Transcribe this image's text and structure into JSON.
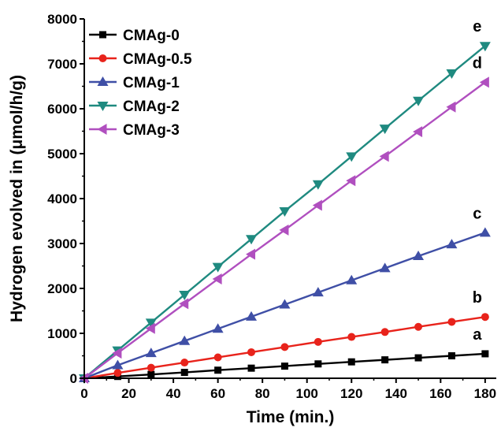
{
  "chart_data": {
    "type": "line",
    "xlabel": "Time (min.)",
    "ylabel": "Hydrogen evolved in (μmol/h/g)",
    "xlim": [
      0,
      185
    ],
    "ylim": [
      0,
      8000
    ],
    "xticks": [
      0,
      20,
      40,
      60,
      80,
      100,
      120,
      140,
      160,
      180
    ],
    "yticks": [
      0,
      1000,
      2000,
      3000,
      4000,
      5000,
      6000,
      7000,
      8000
    ],
    "grid": false,
    "legend_position": "top-left",
    "x": [
      0,
      15,
      30,
      45,
      60,
      75,
      90,
      105,
      120,
      135,
      150,
      165,
      180
    ],
    "series": [
      {
        "name": "CMAg-0",
        "color": "#000000",
        "marker": "square",
        "end_label": "a",
        "values": [
          0,
          40,
          85,
          130,
          180,
          225,
          270,
          320,
          365,
          410,
          455,
          500,
          545
        ]
      },
      {
        "name": "CMAg-0.5",
        "color": "#e8231b",
        "marker": "circle",
        "end_label": "b",
        "values": [
          0,
          120,
          235,
          350,
          465,
          580,
          695,
          810,
          920,
          1030,
          1145,
          1255,
          1365
        ]
      },
      {
        "name": "CMAg-1",
        "color": "#3f4fa6",
        "marker": "triangle-up",
        "end_label": "c",
        "values": [
          0,
          290,
          560,
          830,
          1100,
          1370,
          1640,
          1910,
          2180,
          2450,
          2720,
          2980,
          3240
        ]
      },
      {
        "name": "CMAg-2",
        "color": "#1f8a80",
        "marker": "triangle-down",
        "end_label": "e",
        "values": [
          0,
          620,
          1240,
          1860,
          2480,
          3100,
          3720,
          4320,
          4940,
          5560,
          6180,
          6790,
          7400
        ]
      },
      {
        "name": "CMAg-3",
        "color": "#b04fbf",
        "marker": "triangle-left",
        "end_label": "d",
        "values": [
          0,
          560,
          1110,
          1660,
          2210,
          2760,
          3300,
          3850,
          4400,
          4940,
          5490,
          6040,
          6590
        ]
      }
    ]
  }
}
